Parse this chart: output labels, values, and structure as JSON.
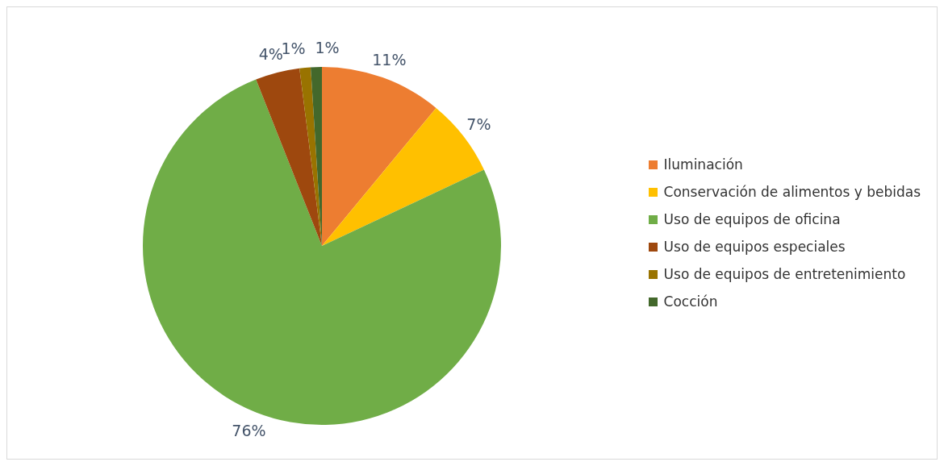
{
  "chart_data": {
    "type": "pie",
    "categories": [
      "Iluminación",
      "Conservación de alimentos y bebidas",
      "Uso de equipos de oficina",
      "Uso de equipos especiales",
      "Uso de equipos de entretenimiento",
      "Cocción"
    ],
    "values": [
      11,
      7,
      76,
      4,
      1,
      1
    ],
    "colors": [
      "#ed7d31",
      "#ffc000",
      "#70ad47",
      "#9e480e",
      "#997300",
      "#43682b"
    ],
    "value_labels": [
      "11%",
      "7%",
      "76%",
      "4%",
      "1%",
      "1%"
    ],
    "legend": "right"
  }
}
